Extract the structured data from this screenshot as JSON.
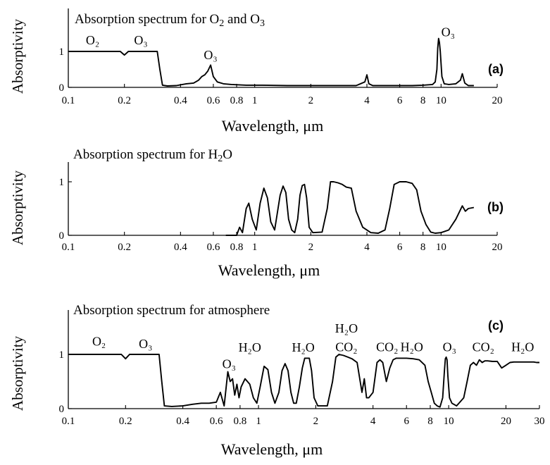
{
  "chart_data": [
    {
      "type": "line",
      "panel_label": "(a)",
      "title": "Absorption spectrum for O2 and O3",
      "title_parts": [
        [
          "Absorption spectrum for O",
          0
        ],
        [
          "2",
          1
        ],
        [
          " and O",
          0
        ],
        [
          "3",
          1
        ]
      ],
      "ylabel": "Absorptivity",
      "xlabel": "Wavelength,  μm",
      "x_scale": "log",
      "xlim": [
        0.1,
        20
      ],
      "ylim": [
        0,
        1.6
      ],
      "x_ticks": [
        "0.1",
        "0.2",
        "0.4",
        "0.6",
        "0.8",
        "1",
        "2",
        "4",
        "6",
        "8",
        "10",
        "20"
      ],
      "y_ticks": [
        "0",
        "1"
      ],
      "annotations": [
        {
          "text": "O₂",
          "x": 0.135,
          "y": 1.2
        },
        {
          "text": "O₃",
          "x": 0.245,
          "y": 1.2
        },
        {
          "text": "O₃",
          "x": 0.58,
          "y": 0.78
        },
        {
          "text": "O₃",
          "x": 10.9,
          "y": 1.42
        }
      ],
      "series": [
        {
          "x": [
            0.1,
            0.19,
            0.2,
            0.21,
            0.3,
            0.31,
            0.32,
            0.34,
            0.38,
            0.43,
            0.47,
            0.5,
            0.52,
            0.54,
            0.56,
            0.58,
            0.6,
            0.63,
            0.68,
            0.75,
            0.9,
            1.1,
            1.5,
            2.0,
            2.8,
            3.5,
            3.9,
            4.0,
            4.1,
            4.3,
            5.0,
            6.0,
            7.0,
            8.0,
            9.0,
            9.3,
            9.5,
            9.6,
            9.7,
            9.8,
            9.9,
            10.1,
            10.4,
            11.0,
            12.0,
            12.7,
            13.0,
            13.4,
            14.0,
            15.0
          ],
          "y": [
            1.0,
            1.0,
            0.9,
            1.0,
            1.0,
            0.5,
            0.06,
            0.04,
            0.05,
            0.1,
            0.12,
            0.2,
            0.3,
            0.35,
            0.45,
            0.62,
            0.3,
            0.15,
            0.1,
            0.08,
            0.06,
            0.06,
            0.05,
            0.05,
            0.05,
            0.05,
            0.15,
            0.35,
            0.1,
            0.05,
            0.05,
            0.05,
            0.05,
            0.06,
            0.08,
            0.15,
            0.5,
            1.1,
            1.36,
            1.25,
            1.0,
            0.3,
            0.1,
            0.08,
            0.1,
            0.2,
            0.38,
            0.12,
            0.05,
            0.05
          ]
        }
      ]
    },
    {
      "type": "line",
      "panel_label": "(b)",
      "title": "Absorption spectrum for H2O",
      "title_parts": [
        [
          "Absorption spectrum for H",
          0
        ],
        [
          "2",
          1
        ],
        [
          "O",
          0
        ]
      ],
      "ylabel": "Absorptivity",
      "xlabel": "Wavelength,  μm",
      "x_scale": "log",
      "xlim": [
        0.1,
        20
      ],
      "ylim": [
        0,
        1.3
      ],
      "x_ticks": [
        "0.1",
        "0.2",
        "0.4",
        "0.6",
        "0.8",
        "1",
        "2",
        "4",
        "6",
        "8",
        "10",
        "20"
      ],
      "y_ticks": [
        "0",
        "1"
      ],
      "annotations": [],
      "series": [
        {
          "x": [
            0.7,
            0.8,
            0.83,
            0.86,
            0.9,
            0.93,
            0.97,
            1.02,
            1.07,
            1.12,
            1.17,
            1.22,
            1.28,
            1.32,
            1.37,
            1.42,
            1.47,
            1.52,
            1.58,
            1.64,
            1.7,
            1.75,
            1.8,
            1.85,
            1.9,
            1.96,
            2.05,
            2.3,
            2.45,
            2.55,
            2.65,
            2.8,
            2.95,
            3.1,
            3.3,
            3.5,
            3.8,
            4.2,
            4.6,
            5.0,
            5.3,
            5.6,
            6.0,
            6.5,
            7.0,
            7.4,
            7.8,
            8.3,
            8.8,
            9.3,
            10.0,
            11.0,
            12.0,
            13.0,
            13.5,
            14.0,
            15.0
          ],
          "y": [
            0.0,
            0.0,
            0.15,
            0.05,
            0.5,
            0.6,
            0.3,
            0.1,
            0.6,
            0.88,
            0.7,
            0.25,
            0.1,
            0.4,
            0.75,
            0.92,
            0.8,
            0.3,
            0.1,
            0.05,
            0.3,
            0.75,
            0.93,
            0.95,
            0.7,
            0.15,
            0.05,
            0.06,
            0.5,
            1.0,
            1.0,
            0.98,
            0.95,
            0.9,
            0.88,
            0.45,
            0.15,
            0.05,
            0.04,
            0.1,
            0.5,
            0.95,
            1.0,
            1.0,
            0.97,
            0.85,
            0.45,
            0.2,
            0.06,
            0.04,
            0.05,
            0.1,
            0.3,
            0.55,
            0.45,
            0.5,
            0.52
          ]
        }
      ]
    },
    {
      "type": "line",
      "panel_label": "(c)",
      "title": "Absorption spectrum for atmosphere",
      "title_parts": [
        [
          "Absorption spectrum for atmosphere",
          0
        ]
      ],
      "ylabel": "Absorptivity",
      "xlabel": "Wavelength,  μm",
      "x_scale": "log",
      "xlim": [
        0.1,
        30
      ],
      "ylim": [
        0,
        1.6
      ],
      "x_ticks": [
        "0.1",
        "0.2",
        "0.4",
        "0.6",
        "0.8",
        "1",
        "2",
        "4",
        "6",
        "8",
        "10",
        "20",
        "30"
      ],
      "y_ticks": [
        "0",
        "1"
      ],
      "annotations": [
        {
          "text": "O₂",
          "x": 0.145,
          "y": 1.16
        },
        {
          "text": "O₃",
          "x": 0.255,
          "y": 1.12
        },
        {
          "text": "O₃",
          "x": 0.7,
          "y": 0.75
        },
        {
          "text": "H₂O",
          "x": 0.9,
          "y": 1.05
        },
        {
          "text": "H₂O",
          "x": 1.72,
          "y": 1.05
        },
        {
          "text": "H₂O",
          "x": 2.9,
          "y": 1.4
        },
        {
          "text": "CO₂",
          "x": 2.9,
          "y": 1.06
        },
        {
          "text": "CO₂",
          "x": 4.75,
          "y": 1.06
        },
        {
          "text": "H₂O",
          "x": 6.4,
          "y": 1.06
        },
        {
          "text": "O₃",
          "x": 10.1,
          "y": 1.06
        },
        {
          "text": "CO₂",
          "x": 15.2,
          "y": 1.06
        },
        {
          "text": "H₂O",
          "x": 24.5,
          "y": 1.06
        }
      ],
      "series": [
        {
          "x": [
            0.1,
            0.19,
            0.2,
            0.21,
            0.3,
            0.31,
            0.32,
            0.35,
            0.4,
            0.45,
            0.5,
            0.55,
            0.6,
            0.63,
            0.66,
            0.69,
            0.71,
            0.73,
            0.75,
            0.77,
            0.79,
            0.81,
            0.85,
            0.9,
            0.94,
            0.98,
            1.02,
            1.07,
            1.12,
            1.17,
            1.22,
            1.28,
            1.33,
            1.38,
            1.43,
            1.48,
            1.53,
            1.58,
            1.64,
            1.7,
            1.75,
            1.8,
            1.85,
            1.9,
            1.96,
            2.05,
            2.3,
            2.45,
            2.55,
            2.65,
            2.8,
            2.95,
            3.1,
            3.3,
            3.5,
            3.6,
            3.7,
            3.8,
            4.0,
            4.2,
            4.35,
            4.5,
            4.7,
            4.9,
            5.1,
            5.3,
            5.6,
            6.0,
            6.5,
            7.0,
            7.5,
            7.8,
            8.1,
            8.4,
            8.7,
            9.0,
            9.3,
            9.5,
            9.6,
            9.7,
            9.8,
            9.9,
            10.1,
            10.4,
            11.0,
            12.0,
            12.5,
            13.0,
            13.5,
            14.0,
            14.5,
            15.0,
            15.5,
            16.0,
            17.0,
            18.0,
            19.0,
            20.0,
            21.0,
            22.0,
            24.0,
            26.0,
            28.0,
            29.0,
            30.0
          ],
          "y": [
            1.0,
            1.0,
            0.92,
            1.0,
            1.0,
            0.5,
            0.05,
            0.04,
            0.05,
            0.08,
            0.1,
            0.1,
            0.12,
            0.3,
            0.05,
            0.68,
            0.5,
            0.55,
            0.25,
            0.45,
            0.2,
            0.4,
            0.55,
            0.45,
            0.2,
            0.1,
            0.4,
            0.78,
            0.72,
            0.3,
            0.1,
            0.3,
            0.7,
            0.83,
            0.7,
            0.3,
            0.1,
            0.1,
            0.4,
            0.75,
            0.93,
            0.93,
            0.93,
            0.7,
            0.2,
            0.05,
            0.05,
            0.5,
            0.95,
            1.0,
            0.98,
            0.95,
            0.92,
            0.85,
            0.3,
            0.55,
            0.2,
            0.2,
            0.3,
            0.85,
            0.9,
            0.85,
            0.5,
            0.75,
            0.9,
            0.93,
            0.93,
            0.93,
            0.92,
            0.9,
            0.8,
            0.5,
            0.3,
            0.1,
            0.05,
            0.03,
            0.2,
            0.7,
            0.92,
            0.95,
            0.9,
            0.6,
            0.2,
            0.1,
            0.05,
            0.2,
            0.5,
            0.8,
            0.85,
            0.8,
            0.9,
            0.85,
            0.88,
            0.88,
            0.87,
            0.87,
            0.75,
            0.8,
            0.85,
            0.86,
            0.86,
            0.86,
            0.86,
            0.85,
            0.85
          ]
        }
      ]
    }
  ]
}
